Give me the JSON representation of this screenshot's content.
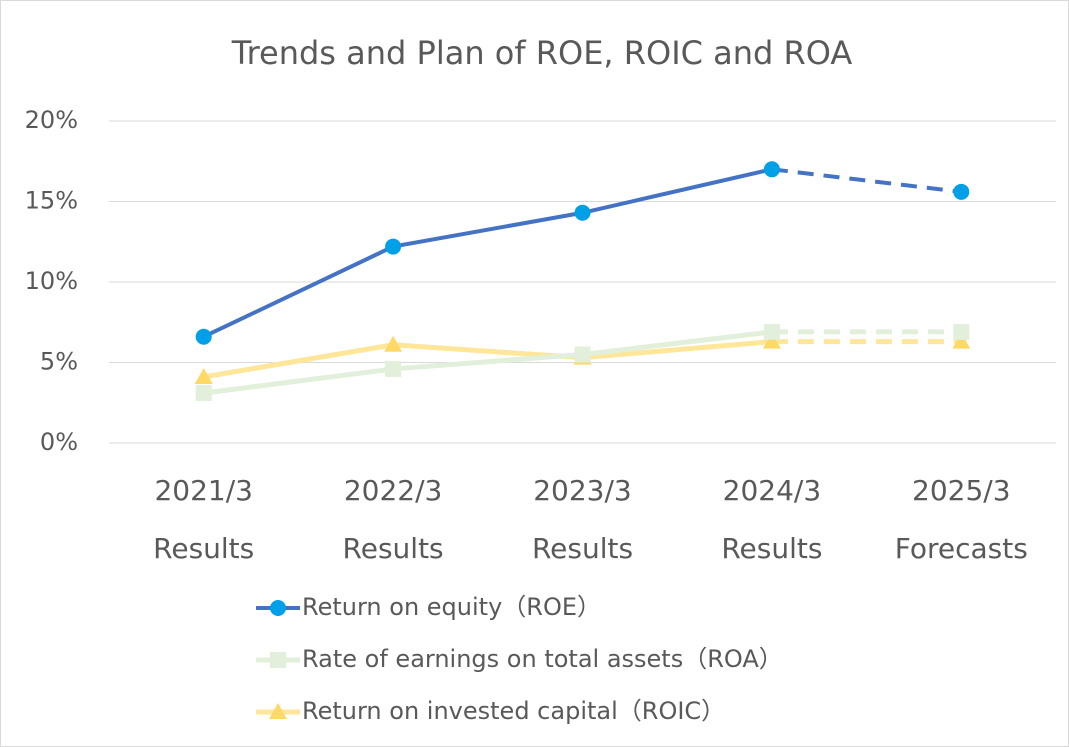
{
  "chart_data": {
    "type": "line",
    "title": "Trends and Plan of ROE, ROIC and ROA",
    "categories": [
      [
        "2021/3",
        "Results"
      ],
      [
        "2022/3",
        "Results"
      ],
      [
        "2023/3",
        "Results"
      ],
      [
        "2024/3",
        "Results"
      ],
      [
        "2025/3",
        "Forecasts"
      ]
    ],
    "series": [
      {
        "name": "Return on equity（ROE）",
        "color": "#4472c4",
        "marker_color": "#00a0e9",
        "marker": "circle",
        "values": [
          6.6,
          12.2,
          14.3,
          17.0,
          15.6
        ]
      },
      {
        "name": "Rate of earnings on total assets（ROA）",
        "color": "#e2efda",
        "marker_color": "#e2efda",
        "marker": "square",
        "values": [
          3.1,
          4.6,
          5.5,
          6.9,
          6.9
        ]
      },
      {
        "name": "Return on invested capital（ROIC）",
        "color": "#ffe699",
        "marker_color": "#ffd966",
        "marker": "triangle",
        "values": [
          4.1,
          6.1,
          5.3,
          6.3,
          6.3
        ]
      }
    ],
    "dashed_from_index": 3,
    "ylim": [
      0,
      20
    ],
    "yticks": [
      {
        "value": 0,
        "label": "0%"
      },
      {
        "value": 5,
        "label": "5%"
      },
      {
        "value": 10,
        "label": "10%"
      },
      {
        "value": 15,
        "label": "15%"
      },
      {
        "value": 20,
        "label": "20%"
      }
    ],
    "grid": true,
    "legend": "bottom"
  }
}
